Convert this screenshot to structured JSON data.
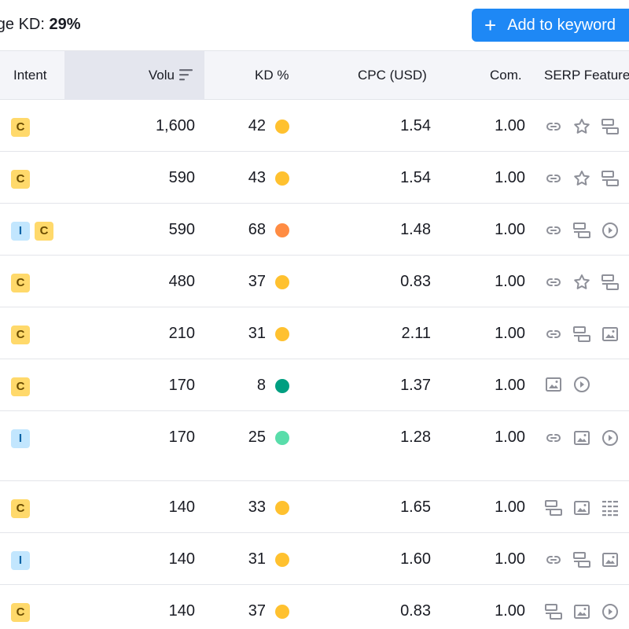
{
  "summary": {
    "prefix": "rage KD: ",
    "value": "29%"
  },
  "add_button": {
    "icon": "+",
    "label": "Add to keyword"
  },
  "columns": {
    "intent": "Intent",
    "volume": "Volu",
    "kd": "KD %",
    "cpc": "CPC (USD)",
    "com": "Com.",
    "serp": "SERP Feature"
  },
  "colors": {
    "accent": "#1e88f5",
    "kd_yellow": "#ffc12f",
    "kd_orange": "#ff8c43",
    "kd_dark_green": "#009f81",
    "kd_light_green": "#59ddaa",
    "badge_c": "#ffd96b",
    "badge_i": "#c2e6fe"
  },
  "rows": [
    {
      "intent": [
        "C"
      ],
      "volume": "1,600",
      "kd": "42",
      "kd_color": "#ffc12f",
      "cpc": "1.54",
      "com": "1.00",
      "serp": [
        "link-icon",
        "star-icon",
        "featured-snippet-icon"
      ]
    },
    {
      "intent": [
        "C"
      ],
      "volume": "590",
      "kd": "43",
      "kd_color": "#ffc12f",
      "cpc": "1.54",
      "com": "1.00",
      "serp": [
        "link-icon",
        "star-icon",
        "featured-snippet-icon"
      ]
    },
    {
      "intent": [
        "I",
        "C"
      ],
      "volume": "590",
      "kd": "68",
      "kd_color": "#ff8c43",
      "cpc": "1.48",
      "com": "1.00",
      "serp": [
        "link-icon",
        "featured-snippet-icon",
        "video-icon"
      ]
    },
    {
      "intent": [
        "C"
      ],
      "volume": "480",
      "kd": "37",
      "kd_color": "#ffc12f",
      "cpc": "0.83",
      "com": "1.00",
      "serp": [
        "link-icon",
        "star-icon",
        "featured-snippet-icon"
      ]
    },
    {
      "intent": [
        "C"
      ],
      "volume": "210",
      "kd": "31",
      "kd_color": "#ffc12f",
      "cpc": "2.11",
      "com": "1.00",
      "serp": [
        "link-icon",
        "featured-snippet-icon",
        "image-icon"
      ]
    },
    {
      "intent": [
        "C"
      ],
      "volume": "170",
      "kd": "8",
      "kd_color": "#009f81",
      "cpc": "1.37",
      "com": "1.00",
      "serp": [
        "image-icon",
        "video-icon"
      ]
    },
    {
      "intent": [
        "I"
      ],
      "volume": "170",
      "kd": "25",
      "kd_color": "#59ddaa",
      "cpc": "1.28",
      "com": "1.00",
      "serp": [
        "link-icon",
        "image-icon",
        "video-icon"
      ]
    },
    {
      "intent": [
        "C"
      ],
      "volume": "140",
      "kd": "33",
      "kd_color": "#ffc12f",
      "cpc": "1.65",
      "com": "1.00",
      "serp": [
        "featured-snippet-icon",
        "image-icon",
        "table-icon"
      ]
    },
    {
      "intent": [
        "I"
      ],
      "volume": "140",
      "kd": "31",
      "kd_color": "#ffc12f",
      "cpc": "1.60",
      "com": "1.00",
      "serp": [
        "link-icon",
        "featured-snippet-icon",
        "image-icon"
      ]
    },
    {
      "intent": [
        "C"
      ],
      "volume": "140",
      "kd": "37",
      "kd_color": "#ffc12f",
      "cpc": "0.83",
      "com": "1.00",
      "serp": [
        "featured-snippet-icon",
        "image-icon",
        "video-icon"
      ]
    }
  ]
}
